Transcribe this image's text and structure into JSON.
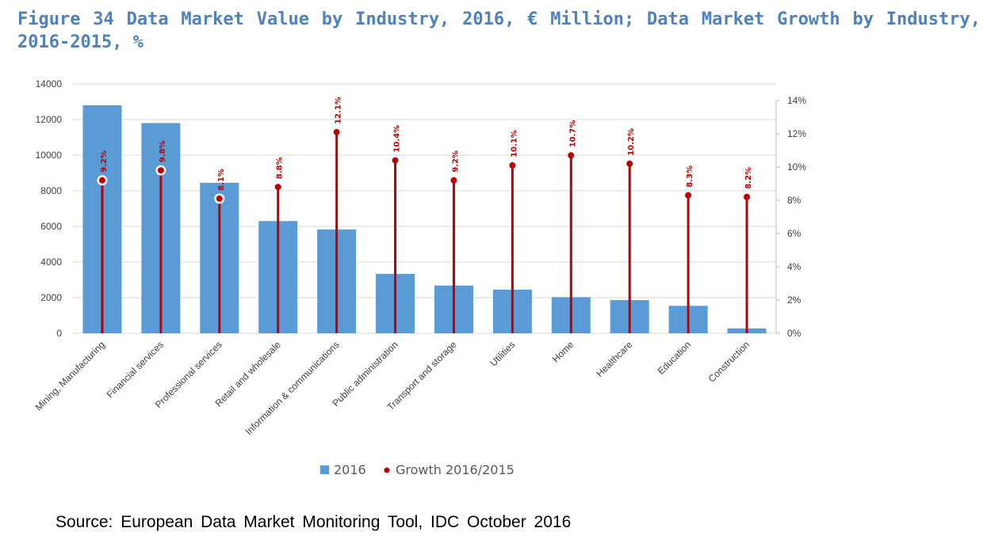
{
  "title": "Figure 34 Data Market Value by Industry, 2016, € Million; Data Market Growth by Industry, 2016-2015, %",
  "source": "Source: European Data Market Monitoring Tool, IDC October 2016",
  "colors": {
    "bar": "#5b9bd5",
    "growth": "#c00000",
    "title": "#4f81bd",
    "grid": "#d9d9d9"
  },
  "chart_data": {
    "type": "bar",
    "categories": [
      "Mining, Manufacturing",
      "Financial services",
      "Professional services",
      "Retail and wholesale",
      "Information & communications",
      "Public administration",
      "Transport and storage",
      "Utilities",
      "Home",
      "Healthcare",
      "Education",
      "Construction"
    ],
    "series": [
      {
        "name": "2016",
        "type": "bar",
        "axis": "left",
        "values": [
          12800,
          11800,
          8450,
          6300,
          5830,
          3330,
          2680,
          2450,
          2030,
          1860,
          1540,
          270
        ]
      },
      {
        "name": "Growth 2016/2015",
        "type": "lollipop",
        "axis": "right",
        "values": [
          9.2,
          9.8,
          8.1,
          8.8,
          12.1,
          10.4,
          9.2,
          10.1,
          10.7,
          10.2,
          8.3,
          8.2
        ],
        "labels": [
          "9.2%",
          "9.8%",
          "8.1%",
          "8.8%",
          "12.1%",
          "10.4%",
          "9.2%",
          "10.1%",
          "10.7%",
          "10.2%",
          "8.3%",
          "8.2%"
        ]
      }
    ],
    "y_left": {
      "min": 0,
      "max": 14000,
      "ticks": [
        "0",
        "2000",
        "4000",
        "6000",
        "8000",
        "10000",
        "12000",
        "14000"
      ]
    },
    "y_right": {
      "min": 0,
      "max": 14,
      "ticks": [
        "0%",
        "2%",
        "4%",
        "6%",
        "8%",
        "10%",
        "12%",
        "14%"
      ]
    },
    "legend": {
      "position": "bottom",
      "items": [
        "2016",
        "Growth 2016/2015"
      ]
    },
    "grid": true
  }
}
